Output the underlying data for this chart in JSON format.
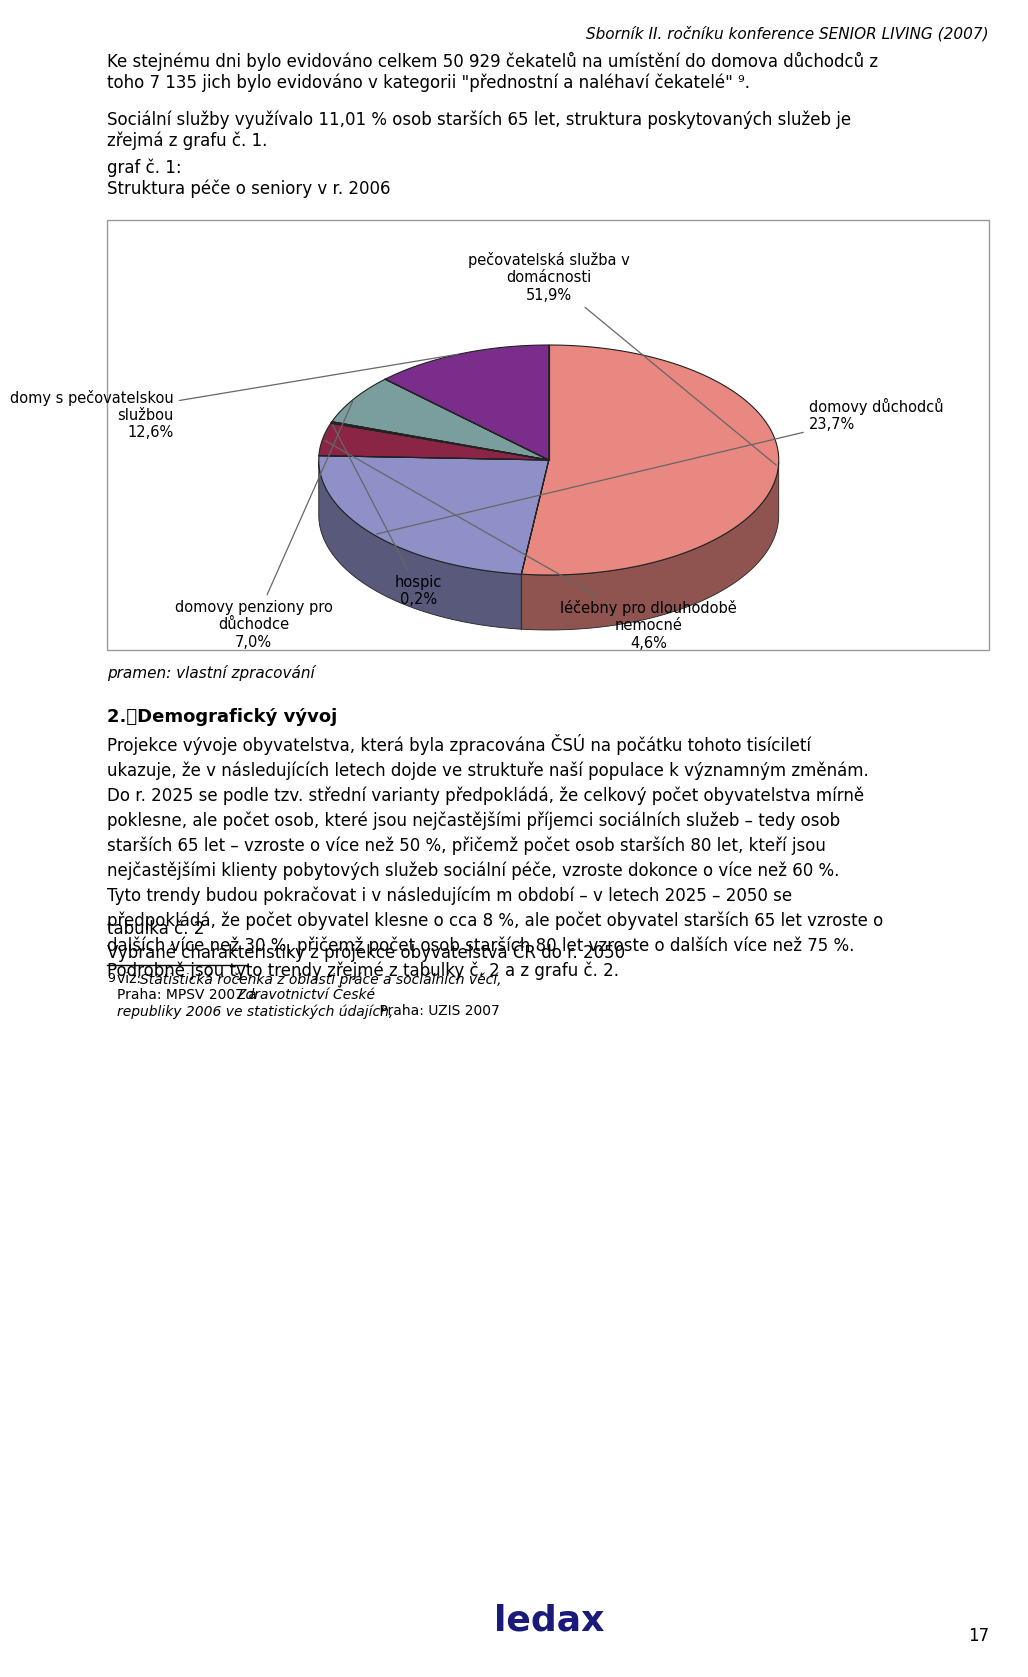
{
  "header": "Sborník II. ročníku konference SENIOR LIVING (2007)",
  "intro1": "Ke stejnému dni bylo evidováno celkem 50 929 čekatelů na umístění do domova důchodců z\ntoho 7 135 jich bylo evidováno v kategorii \"přednostní a naléhaví čekatelé\" ⁹.",
  "intro2": "Sociální služby využívalo 11,01 % osob starších 65 let, struktura poskytovaných služeb je\nzřejmá z grafu č. 1.",
  "graf_title": "graf č. 1:\nStruktura péče o seniory v r. 2006",
  "slices": [
    {
      "label": "pečovatelská služba v\ndomácnosti\n51,9%",
      "value": 51.9,
      "color": "#E88880"
    },
    {
      "label": "domovy důchodců\n23,7%",
      "value": 23.7,
      "color": "#9090C8"
    },
    {
      "label": "léčebny pro dlouhodobě\nnemocné\n4,6%",
      "value": 4.6,
      "color": "#8B2545"
    },
    {
      "label": "hospic\n0,2%",
      "value": 0.2,
      "color": "#B8EEEE"
    },
    {
      "label": "domovy penziony pro\ndůchodce\n7,0%",
      "value": 7.0,
      "color": "#7A9E9E"
    },
    {
      "label": "domy s pečovatelskou\nslužbou\n12,6%",
      "value": 12.6,
      "color": "#7B2D8B"
    }
  ],
  "pramen": "pramen: vlastní zpracování",
  "section2_title": "2.\tDemografický vývoj",
  "section2_body": "Projekce vývoje obyvatelstva, která byla zpracována ČSÚ na počátku tohoto tisíciletí\nukazuje, že v následujících letech dojde ve struktuře naší populace k významným změnám.\nDo r. 2025 se podle tzv. střední varianty předpokládá, že celkový počet obyvatelstva mírně\npoklesne, ale počet osob, které jsou nejčastějšími příjemci sociálních služeb – tedy osob\nstarších 65 let – vzroste o více než 50 %, přičemž počet osob starších 80 let, kteří jsou\nnejčastějšími klienty pobytových služeb sociální péče, vzroste dokonce o více než 60 %.\nTyto trendy budou pokračovat i v následujícím m období – v letech 2025 – 2050 se\npředpokládá, že počet obyvatel klesne o cca 8 %, ale počet obyvatel starších 65 let vzroste o\ndalších více než 30 %, přičemž počet osob starších 80 let vzroste o dalších více než 75 %.\nPodrobně jsou tyto trendy zřejmé z tabulky č. 2 a z grafu č. 2.",
  "tabulka_title": "tabulka č. 2\nVybrané charakteristiky z projekce obyvatelstva ČR do r. 2050",
  "footnote_num": "9",
  "footnote_text": "viz: Statistická ročenka z oblasti práce a sociálních věcí, Praha: MPSV 2007 a Zdravotnictví České\nrepubliky 2006 ve statistických údajích, Praha: UZIS 2007",
  "page_num": "17",
  "background": "#ffffff"
}
